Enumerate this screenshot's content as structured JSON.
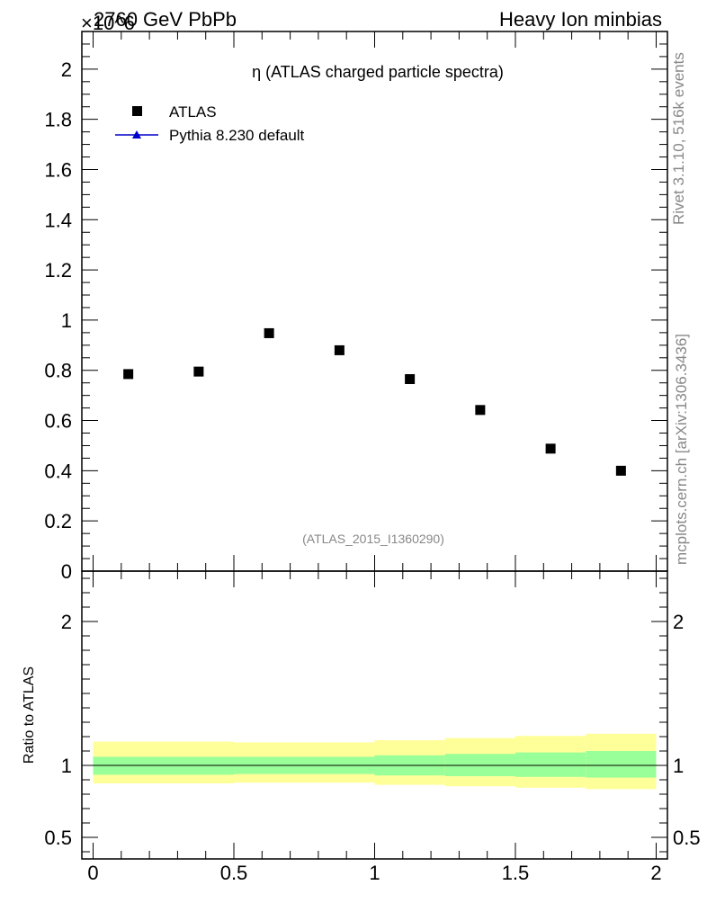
{
  "header": {
    "left": "2760 GeV PbPb",
    "right": "Heavy Ion minbias",
    "multiplier": "×10^6"
  },
  "side_notes": {
    "rivet": "Rivet 3.1.10,  516k events",
    "mcplots": "mcplots.cern.ch [arXiv:1306.3436]"
  },
  "source_label": "(ATLAS_2015_I1360290)",
  "ratio_ylabel": "Ratio to ATLAS",
  "colors": {
    "data_marker": "#000000",
    "mc_line": "#0000cc",
    "band_inner": "#99ff99",
    "band_outer": "#ffff99",
    "side_text": "#888888"
  },
  "chart_data": {
    "type": "scatter",
    "title": "η (ATLAS charged particle spectra)",
    "xlabel": "",
    "ylabel": "",
    "xlim": [
      -0.04,
      2.04
    ],
    "ylim": [
      0,
      2.15
    ],
    "y_scale_factor": "×10^6",
    "x_ticks": [
      "0",
      "0.5",
      "1",
      "1.5",
      "2"
    ],
    "y_ticks": [
      "0",
      "0.2",
      "0.4",
      "0.6",
      "0.8",
      "1",
      "1.2",
      "1.4",
      "1.6",
      "1.8",
      "2"
    ],
    "legend": [
      {
        "label": "ATLAS",
        "marker": "square"
      },
      {
        "label": "Pythia 8.230 default",
        "marker": "triangle-line"
      }
    ],
    "series": [
      {
        "name": "ATLAS",
        "x": [
          0.125,
          0.375,
          0.625,
          0.875,
          1.125,
          1.375,
          1.625,
          1.875
        ],
        "y": [
          0.785,
          0.795,
          0.948,
          0.88,
          0.765,
          0.642,
          0.488,
          0.4
        ]
      }
    ],
    "ratio": {
      "ylabel": "Ratio to ATLAS",
      "ylim": [
        0.35,
        2.35
      ],
      "y_ticks": [
        "0.5",
        "1",
        "2"
      ],
      "bin_edges": [
        0,
        0.5,
        1.0,
        1.25,
        1.5,
        1.75,
        2.0
      ],
      "inner_band": [
        {
          "lo": 0.935,
          "hi": 1.06
        },
        {
          "lo": 0.94,
          "hi": 1.06
        },
        {
          "lo": 0.93,
          "hi": 1.07
        },
        {
          "lo": 0.925,
          "hi": 1.08
        },
        {
          "lo": 0.92,
          "hi": 1.09
        },
        {
          "lo": 0.915,
          "hi": 1.1
        }
      ],
      "outer_band": [
        {
          "lo": 0.875,
          "hi": 1.165
        },
        {
          "lo": 0.88,
          "hi": 1.16
        },
        {
          "lo": 0.865,
          "hi": 1.175
        },
        {
          "lo": 0.855,
          "hi": 1.19
        },
        {
          "lo": 0.845,
          "hi": 1.205
        },
        {
          "lo": 0.835,
          "hi": 1.22
        }
      ]
    }
  }
}
